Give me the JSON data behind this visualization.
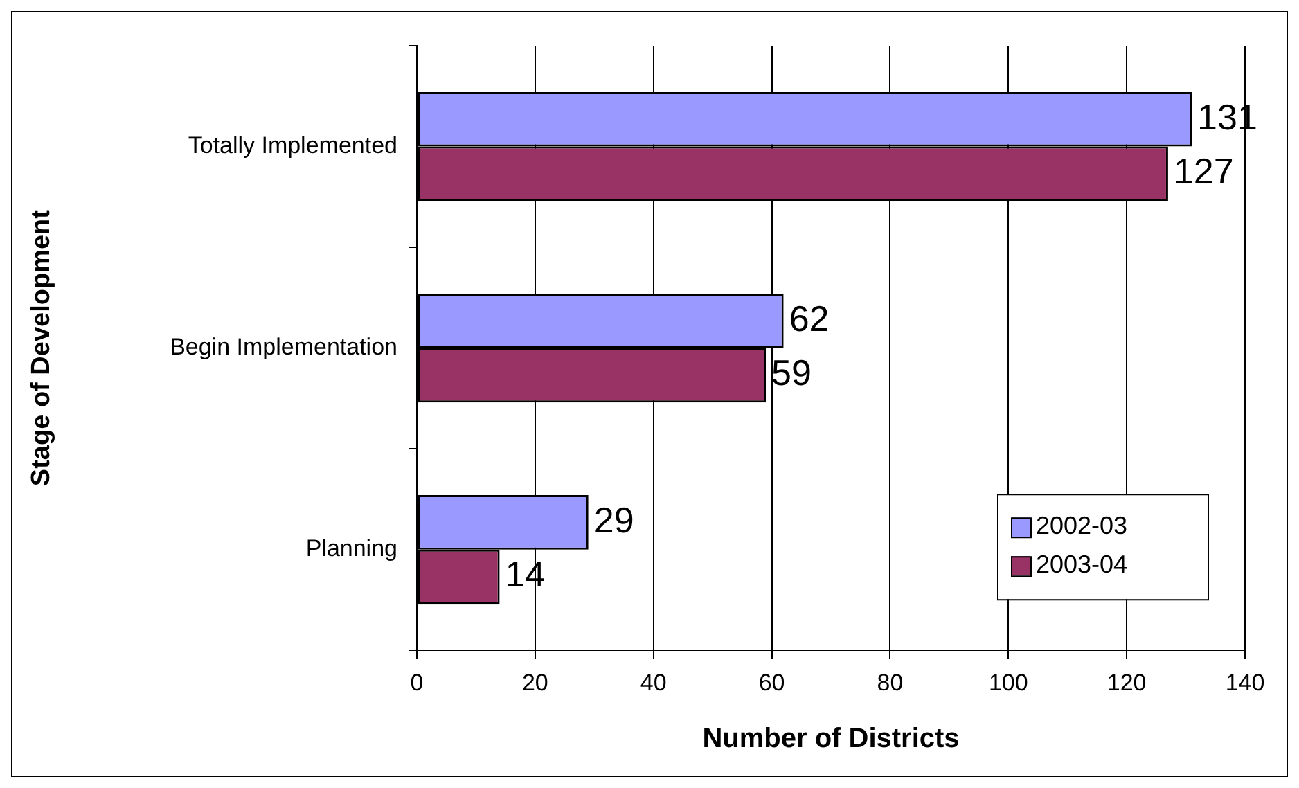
{
  "chart_data": {
    "type": "bar",
    "orientation": "horizontal",
    "xlabel": "Number of Districts",
    "ylabel": "Stage of Development",
    "categories": [
      "Totally Implemented",
      "Begin Implementation",
      "Planning"
    ],
    "series": [
      {
        "name": "2002-03",
        "color": "#9999ff",
        "values": [
          131,
          62,
          29
        ]
      },
      {
        "name": "2003-04",
        "color": "#993366",
        "values": [
          127,
          59,
          14
        ]
      }
    ],
    "xlim": [
      0,
      140
    ],
    "xticks": [
      0,
      20,
      40,
      60,
      80,
      100,
      120,
      140
    ],
    "grid": "x",
    "legend": "right",
    "data_labels": true
  }
}
